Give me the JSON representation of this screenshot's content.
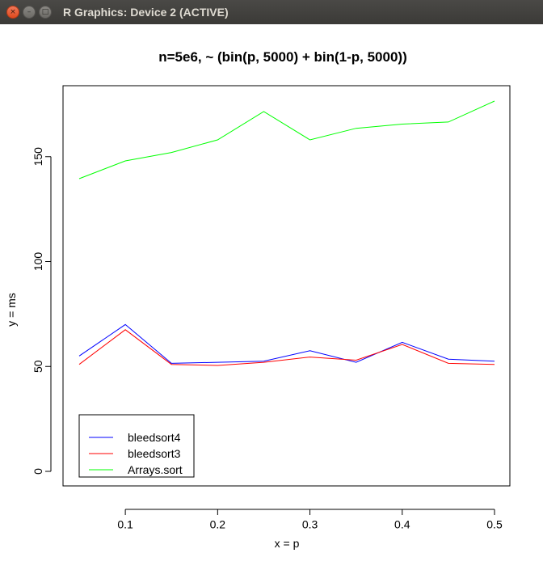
{
  "window": {
    "title": "R Graphics: Device 2 (ACTIVE)",
    "buttons": {
      "close": "×",
      "minimize": "–",
      "maximize": "□"
    }
  },
  "chart_data": {
    "type": "line",
    "title": "n=5e6,  ~ (bin(p, 5000) + bin(1-p, 5000))",
    "xlabel": "x = p",
    "ylabel": "y = ms",
    "x": [
      0.05,
      0.1,
      0.15,
      0.2,
      0.25,
      0.3,
      0.35,
      0.4,
      0.45,
      0.5
    ],
    "xticks": [
      "0.1",
      "0.2",
      "0.3",
      "0.4",
      "0.5"
    ],
    "xtick_values": [
      0.1,
      0.2,
      0.3,
      0.4,
      0.5
    ],
    "yticks": [
      "0",
      "50",
      "100",
      "150"
    ],
    "ytick_values": [
      0,
      50,
      100,
      150
    ],
    "xlim": [
      0.05,
      0.5
    ],
    "ylim": [
      0,
      176.5
    ],
    "grid": false,
    "legend_position": "bottom-left",
    "series": [
      {
        "name": "bleedsort4",
        "color": "#0000ff",
        "values": [
          55,
          70,
          51.5,
          52,
          52.5,
          57.5,
          52,
          61.5,
          53.5,
          52.5
        ]
      },
      {
        "name": "bleedsort3",
        "color": "#ff0000",
        "values": [
          51,
          67.5,
          51,
          50.5,
          52,
          54.5,
          53,
          60.5,
          51.5,
          51
        ]
      },
      {
        "name": "Arrays.sort",
        "color": "#00ff00",
        "values": [
          139.5,
          148,
          152,
          158,
          171.5,
          158,
          163.5,
          165.5,
          166.5,
          176.5
        ]
      }
    ]
  }
}
